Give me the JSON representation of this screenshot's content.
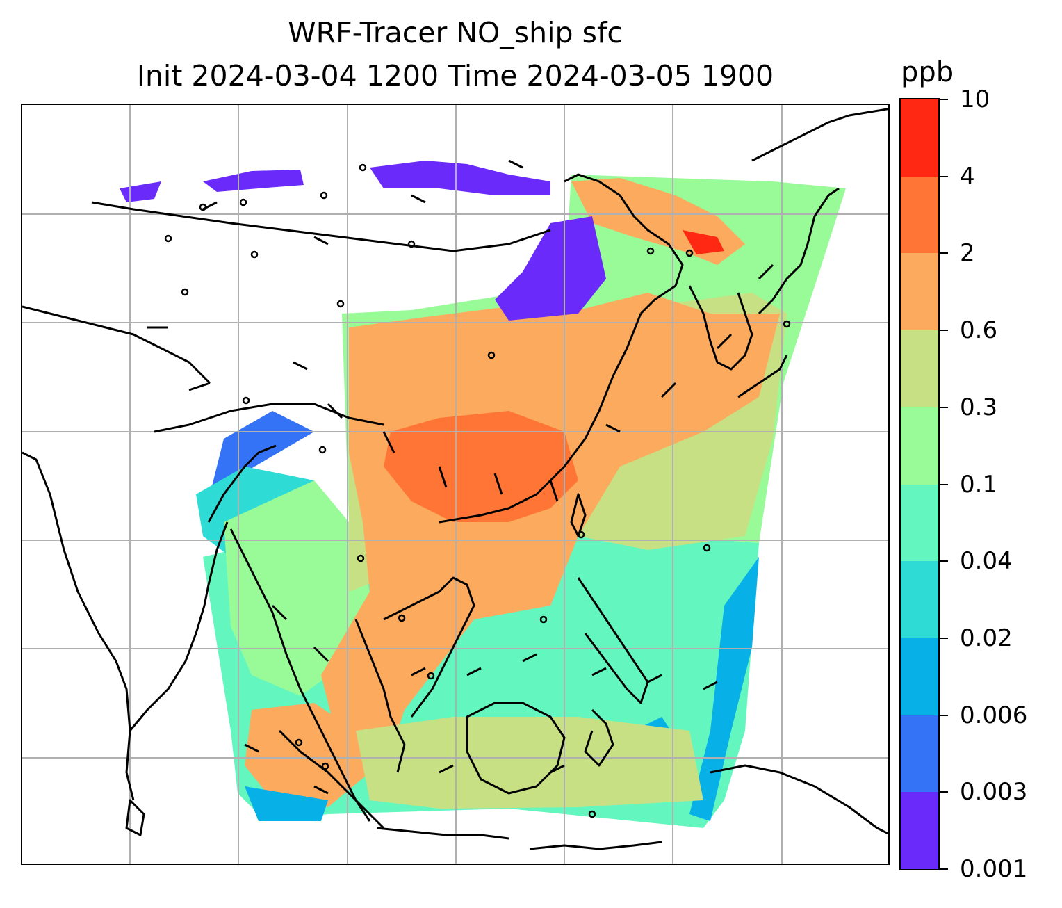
{
  "title": {
    "line1": "WRF-Tracer NO_ship sfc",
    "line2": "Init 2024-03-04 1200 Time 2024-03-05 1900"
  },
  "map": {
    "domain": "East and Southeast Asia",
    "tracer": "NO_ship",
    "level": "sfc",
    "gridlines": true,
    "coastlines": true,
    "wind_barbs": true,
    "background_color": "#ffffff"
  },
  "colorbar": {
    "title": "ppb",
    "levels": [
      "0.001",
      "0.003",
      "0.006",
      "0.02",
      "0.04",
      "0.1",
      "0.3",
      "0.6",
      "2",
      "4",
      "10"
    ],
    "colors": [
      "#6a2bfa",
      "#3473f6",
      "#07b1e8",
      "#2fdbd5",
      "#63f7bf",
      "#98fb98",
      "#c8e084",
      "#fbaa5e",
      "#ff7536",
      "#ff2812"
    ]
  }
}
